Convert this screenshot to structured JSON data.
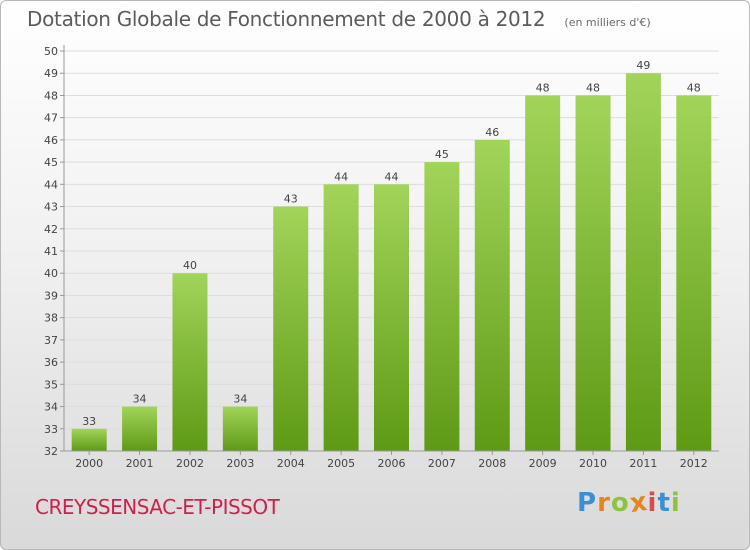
{
  "header": {
    "title": "Dotation Globale de Fonctionnement de 2000 à 2012",
    "subtitle": "(en milliers d'€)"
  },
  "footer": {
    "commune": "CREYSSENSAC-ET-PISSOT"
  },
  "logo": {
    "letters": [
      "P",
      "r",
      "o",
      "x",
      "i",
      "t",
      "i"
    ],
    "colors": [
      "#3a8fd6",
      "#e8841e",
      "#8cc43d",
      "#e8841e",
      "#d94b4b",
      "#3a8fd6",
      "#8cc43d"
    ]
  },
  "colors": {
    "bar_top": "#a2d45a",
    "bar_bottom": "#5e9a15",
    "axis": "#999999",
    "grid": "#dddddd",
    "text": "#444444"
  },
  "chart_data": {
    "type": "bar",
    "categories": [
      "2000",
      "2001",
      "2002",
      "2003",
      "2004",
      "2005",
      "2006",
      "2007",
      "2008",
      "2009",
      "2010",
      "2011",
      "2012"
    ],
    "values": [
      33,
      34,
      40,
      34,
      43,
      44,
      44,
      45,
      46,
      48,
      48,
      49,
      48
    ],
    "ylim": [
      32,
      50
    ],
    "yticks": [
      32,
      33,
      34,
      35,
      36,
      37,
      38,
      39,
      40,
      41,
      42,
      43,
      44,
      45,
      46,
      47,
      48,
      49,
      50
    ],
    "grid": true,
    "legend": "none"
  }
}
